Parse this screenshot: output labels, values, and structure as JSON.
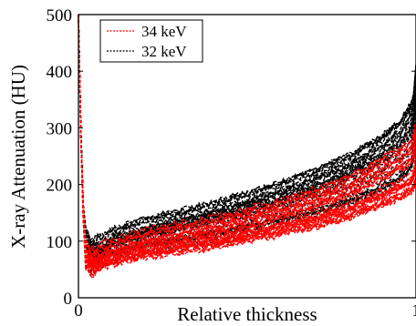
{
  "chart_data": {
    "type": "line",
    "xlabel": "Relative thickness",
    "ylabel": "X-ray Attenuation (HU)",
    "xlim": [
      0,
      1
    ],
    "ylim": [
      0,
      500
    ],
    "yticks": [
      0,
      100,
      200,
      300,
      400,
      500
    ],
    "xticks": [
      {
        "value": 0,
        "label": "0"
      },
      {
        "value": 1,
        "label": "1"
      }
    ],
    "legend_position": "top-left",
    "grid": false,
    "line_style": "dashed",
    "series_count_per_energy": 30,
    "x": [
      0.0,
      0.01,
      0.02,
      0.04,
      0.06,
      0.1,
      0.2,
      0.3,
      0.4,
      0.5,
      0.6,
      0.7,
      0.8,
      0.9,
      0.95,
      0.99,
      1.0
    ],
    "series": [
      {
        "name": "34 keV",
        "color": "#ff0000",
        "values": [
          500,
          200,
          80,
          62,
          70,
          80,
          95,
          105,
          115,
          128,
          142,
          158,
          178,
          205,
          220,
          235,
          260
        ]
      },
      {
        "name": "32 keV",
        "color": "#000000",
        "values": [
          500,
          215,
          92,
          72,
          80,
          92,
          110,
          122,
          135,
          150,
          166,
          185,
          208,
          238,
          258,
          290,
          340
        ]
      }
    ]
  }
}
